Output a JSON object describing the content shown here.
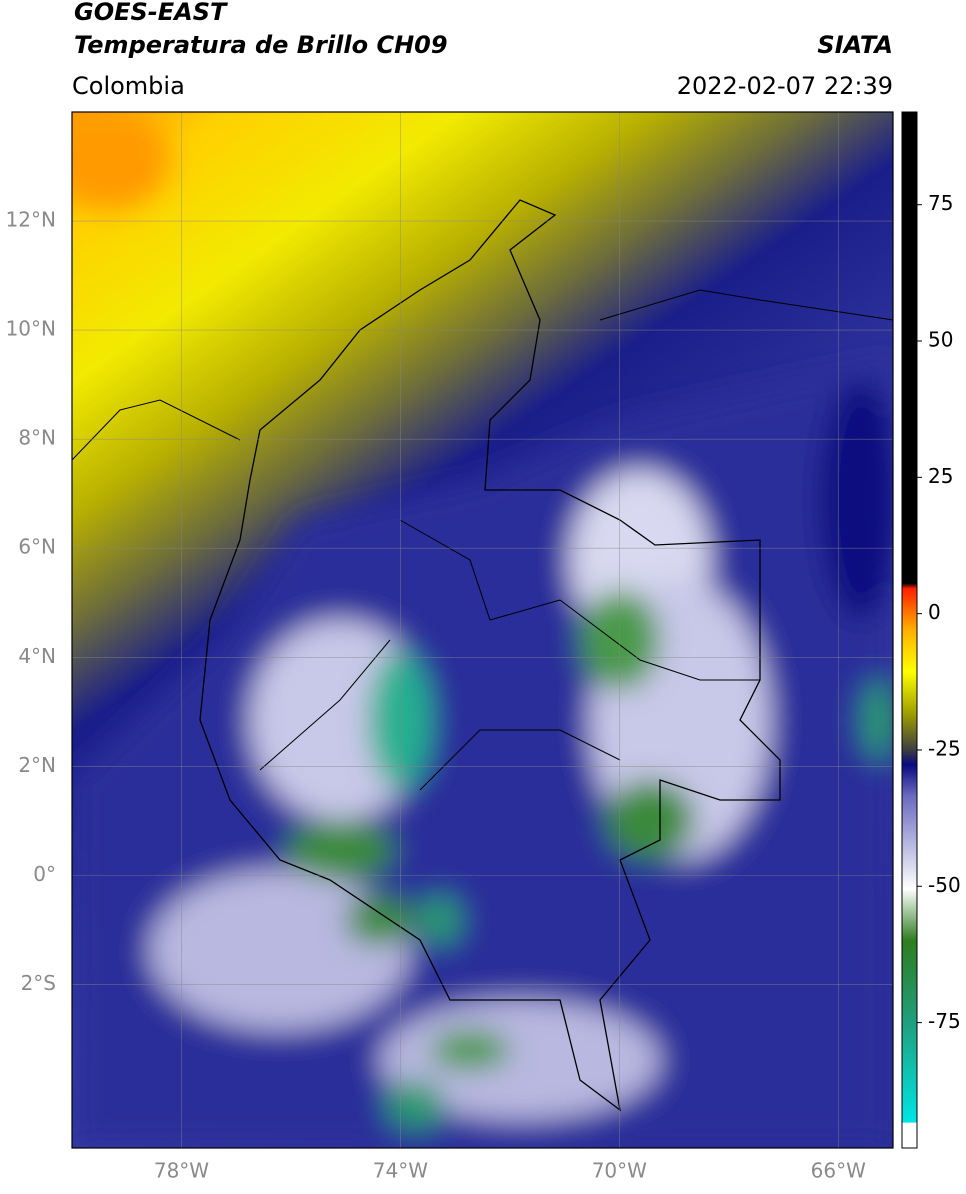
{
  "header": {
    "source": "GOES-EAST",
    "product": "Temperatura de Brillo CH09",
    "agency": "SIATA",
    "region": "Colombia",
    "datetime": "2022-02-07 22:39"
  },
  "map": {
    "xlim": [
      -80,
      -65
    ],
    "ylim": [
      -5,
      14
    ],
    "xticks": [
      {
        "value": -78,
        "label": "78°W"
      },
      {
        "value": -74,
        "label": "74°W"
      },
      {
        "value": -70,
        "label": "70°W"
      },
      {
        "value": -66,
        "label": "66°W"
      }
    ],
    "yticks": [
      {
        "value": 12,
        "label": "12°N"
      },
      {
        "value": 10,
        "label": "10°N"
      },
      {
        "value": 8,
        "label": "8°N"
      },
      {
        "value": 6,
        "label": "6°N"
      },
      {
        "value": 4,
        "label": "4°N"
      },
      {
        "value": 2,
        "label": "2°N"
      },
      {
        "value": 0,
        "label": "0°"
      },
      {
        "value": -2,
        "label": "2°S"
      }
    ],
    "grid": true
  },
  "colorbar": {
    "lim": [
      -98,
      92
    ],
    "ticks": [
      75,
      50,
      25,
      0,
      -25,
      -50,
      -75
    ]
  }
}
